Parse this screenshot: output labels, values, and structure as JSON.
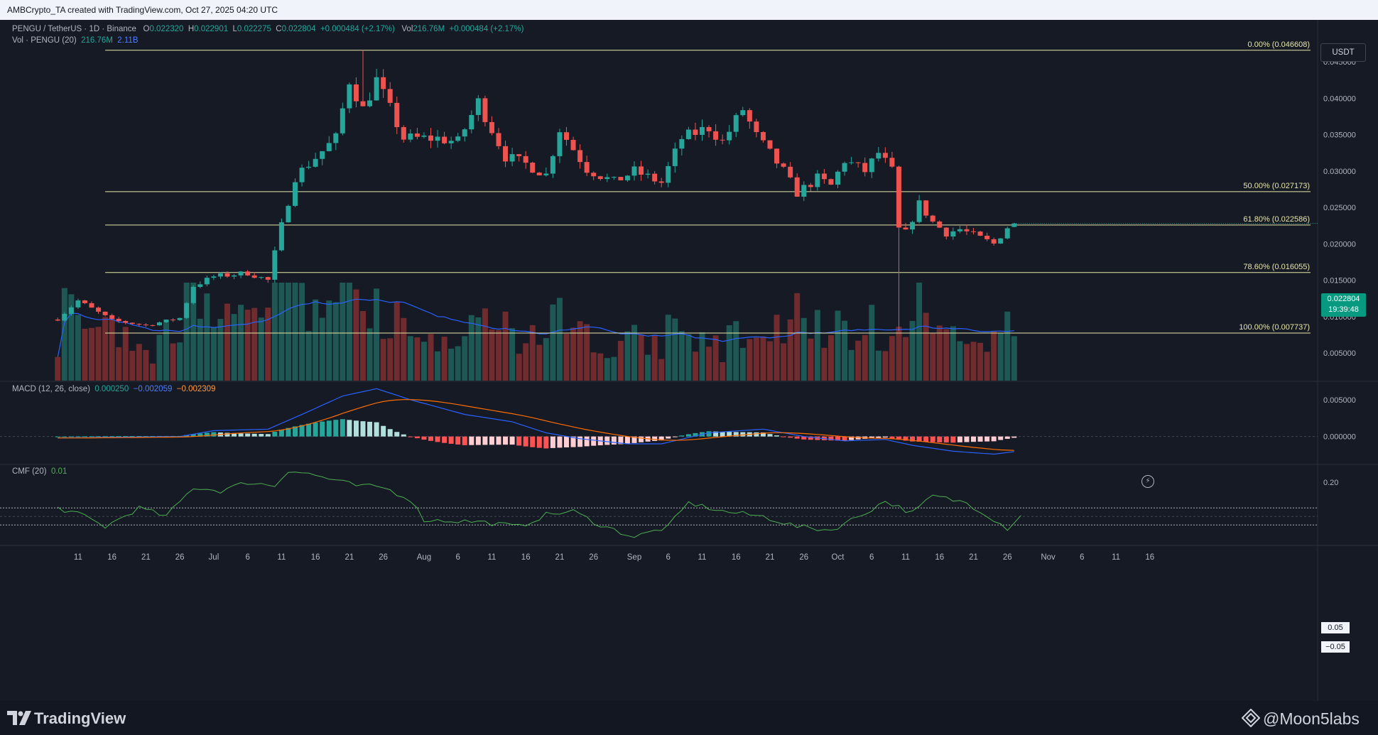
{
  "header": {
    "credit": "AMBCrypto_TA created with TradingView.com, Oct 27, 2025 04:20 UTC"
  },
  "legend": {
    "symbol": "PENGU / TetherUS · 1D · Binance",
    "o_label": "O",
    "o_value": "0.022320",
    "h_label": "H",
    "h_value": "0.022901",
    "l_label": "L",
    "l_value": "0.022275",
    "c_label": "C",
    "c_value": "0.022804",
    "change": "+0.000484 (+2.17%)",
    "vol_label": "Vol",
    "vol_value": "216.76M",
    "vol_change": "+0.000484 (+2.17%)",
    "vol_pane_label": "Vol · PENGU (20)",
    "vol_pane_v1": "216.76M",
    "vol_pane_v2": "2.11B",
    "macd_label": "MACD (12, 26, close)",
    "macd_v1": "0.000250",
    "macd_v2": "−0.002059",
    "macd_v3": "−0.002309",
    "cmf_label": "CMF (20)",
    "cmf_value": "0.01"
  },
  "toolbar": {
    "currency_label": "USDT"
  },
  "price_tag": {
    "price": "0.022804",
    "countdown": "19:39:48"
  },
  "cmf_tags": {
    "upper": "0.05",
    "lower": "−0.05"
  },
  "footer": {
    "brand": "TradingView",
    "watermark": "@Moon5labs"
  },
  "colors": {
    "up": "#26a69a",
    "down": "#ef5350",
    "fib": "#e8e6a8",
    "macd_line": "#2962ff",
    "signal_line": "#ff6d00",
    "cmf_line": "#4caf50",
    "vol_ma": "#2962ff",
    "background": "#161a25"
  },
  "icons": [
    "tradingview-logo-icon",
    "flash-icon",
    "moon5labs-logo-icon"
  ],
  "chart_data": [
    {
      "type": "candlestick",
      "title": "PENGU / TetherUS · 1D · Binance",
      "ylim": [
        0.0012,
        0.05
      ],
      "y_ticks": [
        0.005,
        0.01,
        0.015,
        0.02,
        0.025,
        0.03,
        0.035,
        0.04,
        0.045
      ],
      "y_tick_labels": [
        "0.005000",
        "0.010000",
        "0.015000",
        "0.020000",
        "0.025000",
        "0.030000",
        "0.035000",
        "0.040000",
        "0.045000"
      ],
      "x_ticks": [
        {
          "day": 11,
          "label": "11"
        },
        {
          "day": 16,
          "label": "16"
        },
        {
          "day": 21,
          "label": "21"
        },
        {
          "day": 26,
          "label": "26"
        },
        {
          "day": 31,
          "label": "Jul"
        },
        {
          "day": 36,
          "label": "6"
        },
        {
          "day": 41,
          "label": "11"
        },
        {
          "day": 46,
          "label": "16"
        },
        {
          "day": 51,
          "label": "21"
        },
        {
          "day": 56,
          "label": "26"
        },
        {
          "day": 62,
          "label": "Aug"
        },
        {
          "day": 67,
          "label": "6"
        },
        {
          "day": 72,
          "label": "11"
        },
        {
          "day": 77,
          "label": "16"
        },
        {
          "day": 82,
          "label": "21"
        },
        {
          "day": 87,
          "label": "26"
        },
        {
          "day": 93,
          "label": "Sep"
        },
        {
          "day": 98,
          "label": "6"
        },
        {
          "day": 103,
          "label": "11"
        },
        {
          "day": 108,
          "label": "16"
        },
        {
          "day": 113,
          "label": "21"
        },
        {
          "day": 118,
          "label": "26"
        },
        {
          "day": 123,
          "label": "Oct"
        },
        {
          "day": 128,
          "label": "6"
        },
        {
          "day": 133,
          "label": "11"
        },
        {
          "day": 138,
          "label": "16"
        },
        {
          "day": 143,
          "label": "21"
        },
        {
          "day": 148,
          "label": "26"
        },
        {
          "day": 154,
          "label": "Nov"
        },
        {
          "day": 159,
          "label": "6"
        },
        {
          "day": 164,
          "label": "11"
        },
        {
          "day": 169,
          "label": "16"
        }
      ],
      "fib_levels": [
        {
          "value": 0.046608,
          "label": "0.00% (0.046608)"
        },
        {
          "value": 0.027173,
          "label": "50.00% (0.027173)"
        },
        {
          "value": 0.022586,
          "label": "61.80% (0.022586)"
        },
        {
          "value": 0.016055,
          "label": "78.60% (0.016055)"
        },
        {
          "value": 0.007737,
          "label": "100.00% (0.007737)"
        }
      ],
      "key_closes": [
        {
          "day": 8,
          "close": 0.0097
        },
        {
          "day": 11,
          "close": 0.0122
        },
        {
          "day": 16,
          "close": 0.0095
        },
        {
          "day": 21,
          "close": 0.0088
        },
        {
          "day": 26,
          "close": 0.0098
        },
        {
          "day": 28,
          "close": 0.0142
        },
        {
          "day": 31,
          "close": 0.0155
        },
        {
          "day": 36,
          "close": 0.016
        },
        {
          "day": 39,
          "close": 0.015
        },
        {
          "day": 41,
          "close": 0.0225
        },
        {
          "day": 43,
          "close": 0.0292
        },
        {
          "day": 45,
          "close": 0.031
        },
        {
          "day": 49,
          "close": 0.0345
        },
        {
          "day": 51,
          "close": 0.0425
        },
        {
          "day": 53,
          "close": 0.0385
        },
        {
          "day": 55,
          "close": 0.0425
        },
        {
          "day": 59,
          "close": 0.0345
        },
        {
          "day": 64,
          "close": 0.0345
        },
        {
          "day": 67,
          "close": 0.034
        },
        {
          "day": 70,
          "close": 0.0395
        },
        {
          "day": 74,
          "close": 0.032
        },
        {
          "day": 77,
          "close": 0.031
        },
        {
          "day": 80,
          "close": 0.0295
        },
        {
          "day": 82,
          "close": 0.0358
        },
        {
          "day": 86,
          "close": 0.0303
        },
        {
          "day": 90,
          "close": 0.0285
        },
        {
          "day": 93,
          "close": 0.03
        },
        {
          "day": 97,
          "close": 0.0284
        },
        {
          "day": 100,
          "close": 0.0345
        },
        {
          "day": 104,
          "close": 0.036
        },
        {
          "day": 106,
          "close": 0.034
        },
        {
          "day": 109,
          "close": 0.0385
        },
        {
          "day": 111,
          "close": 0.0348
        },
        {
          "day": 115,
          "close": 0.03
        },
        {
          "day": 117,
          "close": 0.027
        },
        {
          "day": 120,
          "close": 0.029
        },
        {
          "day": 122,
          "close": 0.028
        },
        {
          "day": 124,
          "close": 0.0315
        },
        {
          "day": 127,
          "close": 0.03
        },
        {
          "day": 129,
          "close": 0.0325
        },
        {
          "day": 131,
          "close": 0.03
        },
        {
          "day": 132,
          "close": 0.022
        },
        {
          "day": 133,
          "close": 0.0215
        },
        {
          "day": 135,
          "close": 0.0255
        },
        {
          "day": 137,
          "close": 0.023
        },
        {
          "day": 139,
          "close": 0.0215
        },
        {
          "day": 141,
          "close": 0.022
        },
        {
          "day": 144,
          "close": 0.0208
        },
        {
          "day": 146,
          "close": 0.02
        },
        {
          "day": 148,
          "close": 0.0223
        },
        {
          "day": 149,
          "close": 0.0228
        }
      ],
      "last": {
        "open": 0.02232,
        "high": 0.022901,
        "low": 0.022275,
        "close": 0.022804
      },
      "spike_low": {
        "day": 132,
        "low": 0.008
      },
      "peak_high": {
        "day": 53,
        "high": 0.046608
      }
    },
    {
      "type": "bar",
      "title": "Vol · PENGU (20)",
      "note": "volume histogram overlaid on the price pane, colored by candle direction",
      "last_volume": "216.76M",
      "ma_value": "2.11B"
    },
    {
      "type": "line",
      "title": "MACD (12, 26, close)",
      "series": [
        {
          "name": "Histogram",
          "last": 0.00025
        },
        {
          "name": "MACD",
          "last": -0.002059
        },
        {
          "name": "Signal",
          "last": -0.002309
        }
      ],
      "ylim": [
        -0.0037,
        0.0074
      ],
      "y_ticks": [
        0.0,
        0.005
      ],
      "y_tick_labels": [
        "0.000000",
        "0.005000"
      ],
      "macd_key_points": [
        {
          "day": 8,
          "value": -0.0002
        },
        {
          "day": 26,
          "value": 0.0
        },
        {
          "day": 31,
          "value": 0.0008
        },
        {
          "day": 39,
          "value": 0.001
        },
        {
          "day": 44,
          "value": 0.003
        },
        {
          "day": 50,
          "value": 0.0055
        },
        {
          "day": 55,
          "value": 0.0065
        },
        {
          "day": 60,
          "value": 0.005
        },
        {
          "day": 68,
          "value": 0.003
        },
        {
          "day": 75,
          "value": 0.002
        },
        {
          "day": 80,
          "value": 0.0005
        },
        {
          "day": 85,
          "value": -0.0003
        },
        {
          "day": 92,
          "value": -0.001
        },
        {
          "day": 97,
          "value": -0.001
        },
        {
          "day": 104,
          "value": 0.0005
        },
        {
          "day": 112,
          "value": 0.001
        },
        {
          "day": 118,
          "value": 0.0
        },
        {
          "day": 124,
          "value": -0.0006
        },
        {
          "day": 130,
          "value": -0.0004
        },
        {
          "day": 134,
          "value": -0.0012
        },
        {
          "day": 140,
          "value": -0.002
        },
        {
          "day": 146,
          "value": -0.0024
        },
        {
          "day": 149,
          "value": -0.002059
        }
      ]
    },
    {
      "type": "line",
      "title": "CMF (20)",
      "series": [
        {
          "name": "CMF",
          "last": 0.01
        }
      ],
      "ylim": [
        -0.19,
        0.3
      ],
      "y_ticks": [
        0.2
      ],
      "y_tick_labels": [
        "0.20"
      ],
      "bands": [
        0.05,
        -0.05
      ],
      "key_points": [
        {
          "day": 8,
          "value": 0.05
        },
        {
          "day": 12,
          "value": 0.0
        },
        {
          "day": 15,
          "value": -0.06
        },
        {
          "day": 20,
          "value": 0.05
        },
        {
          "day": 24,
          "value": 0.0
        },
        {
          "day": 28,
          "value": 0.17
        },
        {
          "day": 32,
          "value": 0.15
        },
        {
          "day": 36,
          "value": 0.2
        },
        {
          "day": 40,
          "value": 0.18
        },
        {
          "day": 42,
          "value": 0.27
        },
        {
          "day": 45,
          "value": 0.25
        },
        {
          "day": 48,
          "value": 0.22
        },
        {
          "day": 52,
          "value": 0.18
        },
        {
          "day": 56,
          "value": 0.17
        },
        {
          "day": 60,
          "value": 0.1
        },
        {
          "day": 62,
          "value": -0.02
        },
        {
          "day": 70,
          "value": -0.03
        },
        {
          "day": 76,
          "value": -0.06
        },
        {
          "day": 80,
          "value": 0.01
        },
        {
          "day": 84,
          "value": 0.03
        },
        {
          "day": 88,
          "value": -0.05
        },
        {
          "day": 93,
          "value": -0.12
        },
        {
          "day": 98,
          "value": -0.06
        },
        {
          "day": 101,
          "value": 0.08
        },
        {
          "day": 106,
          "value": 0.03
        },
        {
          "day": 112,
          "value": 0.0
        },
        {
          "day": 117,
          "value": -0.06
        },
        {
          "day": 122,
          "value": -0.08
        },
        {
          "day": 127,
          "value": 0.02
        },
        {
          "day": 130,
          "value": 0.09
        },
        {
          "day": 134,
          "value": 0.02
        },
        {
          "day": 137,
          "value": 0.12
        },
        {
          "day": 142,
          "value": 0.08
        },
        {
          "day": 145,
          "value": 0.01
        },
        {
          "day": 148,
          "value": -0.07
        },
        {
          "day": 150,
          "value": 0.01
        }
      ]
    }
  ]
}
